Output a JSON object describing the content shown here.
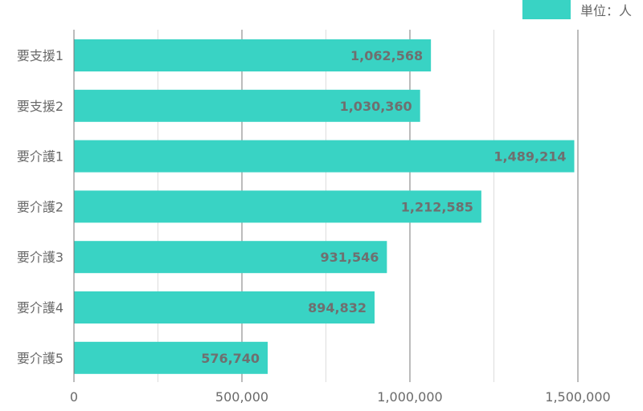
{
  "colors": {
    "bar": "#39d3c4",
    "value_label": "#6f6f6f",
    "axis_text": "#6a6a6a",
    "major_grid": "#7a7a7a",
    "minor_grid": "#dddddd"
  },
  "legend": {
    "label": "単位：人"
  },
  "chart_data": {
    "type": "bar",
    "orientation": "horizontal",
    "categories": [
      "要支援1",
      "要支援2",
      "要介護1",
      "要介護2",
      "要介護3",
      "要介護4",
      "要介護5"
    ],
    "values": [
      1062568,
      1030360,
      1489214,
      1212585,
      931546,
      894832,
      576740
    ],
    "value_labels": [
      "1,062,568",
      "1,030,360",
      "1,489,214",
      "1,212,585",
      "931,546",
      "894,832",
      "576,740"
    ],
    "x_ticks": [
      0,
      500000,
      1000000,
      1500000
    ],
    "x_tick_labels": [
      "0",
      "500,000",
      "1,000,000",
      "1,500,000"
    ],
    "xlim": [
      0,
      1500000
    ],
    "minor_gridlines": [
      250000,
      750000,
      1250000
    ],
    "grid": true,
    "legend_position": "top-right"
  }
}
